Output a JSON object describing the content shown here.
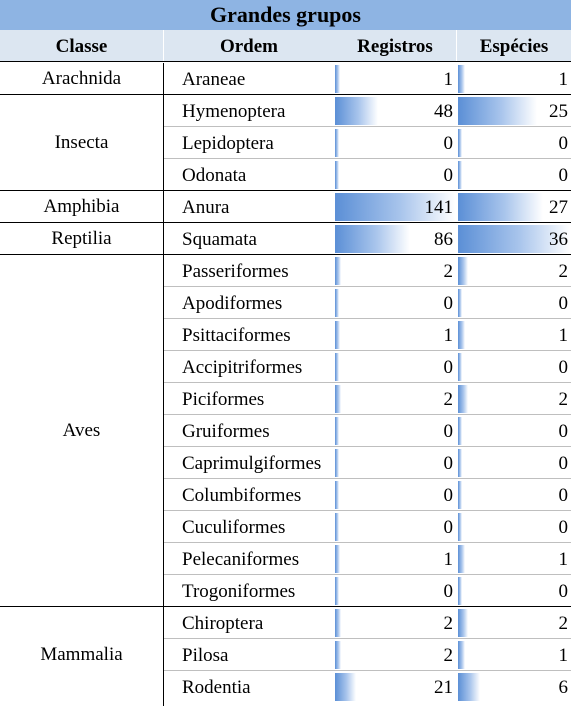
{
  "title": "Grandes grupos",
  "headers": {
    "classe": "Classe",
    "ordem": "Ordem",
    "registros": "Registros",
    "especies": "Espécies"
  },
  "groups": [
    {
      "classe": "Arachnida",
      "rows": [
        {
          "ordem": "Araneae",
          "registros": 1,
          "especies": 1
        }
      ]
    },
    {
      "classe": "Insecta",
      "rows": [
        {
          "ordem": "Hymenoptera",
          "registros": 48,
          "especies": 25
        },
        {
          "ordem": "Lepidoptera",
          "registros": 0,
          "especies": 0
        },
        {
          "ordem": "Odonata",
          "registros": 0,
          "especies": 0
        }
      ]
    },
    {
      "classe": "Amphibia",
      "rows": [
        {
          "ordem": "Anura",
          "registros": 141,
          "especies": 27
        }
      ]
    },
    {
      "classe": "Reptilia",
      "rows": [
        {
          "ordem": "Squamata",
          "registros": 86,
          "especies": 36
        }
      ]
    },
    {
      "classe": "Aves",
      "rows": [
        {
          "ordem": "Passeriformes",
          "registros": 2,
          "especies": 2
        },
        {
          "ordem": "Apodiformes",
          "registros": 0,
          "especies": 0
        },
        {
          "ordem": "Psittaciformes",
          "registros": 1,
          "especies": 1
        },
        {
          "ordem": "Accipitriformes",
          "registros": 0,
          "especies": 0
        },
        {
          "ordem": "Piciformes",
          "registros": 2,
          "especies": 2
        },
        {
          "ordem": "Gruiformes",
          "registros": 0,
          "especies": 0
        },
        {
          "ordem": "Caprimulgiformes",
          "registros": 0,
          "especies": 0
        },
        {
          "ordem": "Columbiformes",
          "registros": 0,
          "especies": 0
        },
        {
          "ordem": "Cuculiformes",
          "registros": 0,
          "especies": 0
        },
        {
          "ordem": "Pelecaniformes",
          "registros": 1,
          "especies": 1
        },
        {
          "ordem": "Trogoniformes",
          "registros": 0,
          "especies": 0
        }
      ]
    },
    {
      "classe": "Mammalia",
      "rows": [
        {
          "ordem": "Chiroptera",
          "registros": 2,
          "especies": 2
        },
        {
          "ordem": "Pilosa",
          "registros": 2,
          "especies": 1
        },
        {
          "ordem": "Rodentia",
          "registros": 21,
          "especies": 6
        }
      ]
    }
  ],
  "colors": {
    "title_bg": "#8eb4e3",
    "header_bg": "#dce6f1",
    "databar": "#5b8fd6"
  }
}
